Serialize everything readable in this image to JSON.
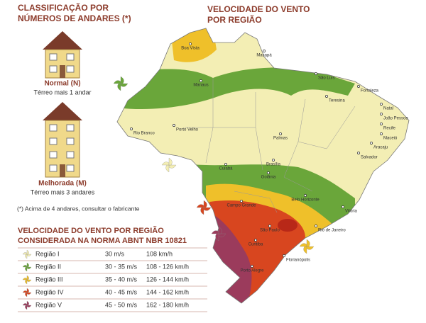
{
  "left_panel": {
    "title_lines": [
      "CLASSIFICAÇÃO POR",
      "NÚMEROS DE ANDARES (*)"
    ],
    "buildings": [
      {
        "label": "Normal (N)",
        "desc": "Térreo mais 1 andar"
      },
      {
        "label": "Melhorada (M)",
        "desc": "Térreo mais 3 andares"
      }
    ],
    "footnote": "(*) Acima de 4 andares, consultar o fabricante"
  },
  "map": {
    "title_lines": [
      "VELOCIDADE DO VENTO",
      "POR REGIÃO"
    ],
    "cities": [
      "Boa Vista",
      "Macapá",
      "Manaus",
      "São Luís",
      "Fortaleza",
      "Teresina",
      "Natal",
      "João Pessoa",
      "Recife",
      "Maceió",
      "Aracaju",
      "Salvador",
      "Palmas",
      "Rio Branco",
      "Porto Velho",
      "Cuiabá",
      "Brasília",
      "Goiânia",
      "Belo Horizonte",
      "Vitória",
      "Campo Grande",
      "São Paulo",
      "Rio de Janeiro",
      "Curitiba",
      "Florianópolis",
      "Porto Alegre"
    ]
  },
  "table": {
    "title_lines": [
      "VELOCIDADE DO VENTO POR REGIÃO",
      "CONSIDERADA NA NORMA ABNT NBR 10821"
    ],
    "rows": [
      [
        "Região I",
        "30 m/s",
        "108 km/h"
      ],
      [
        "Região II",
        "30 - 35 m/s",
        "108 - 126 km/h"
      ],
      [
        "Região III",
        "35 - 40 m/s",
        "126 - 144 km/h"
      ],
      [
        "Região IV",
        "40 - 45 m/s",
        "144 - 162 km/h"
      ],
      [
        "Região V",
        "45 - 50 m/s",
        "162 - 180 km/h"
      ]
    ],
    "colors": [
      "#f3eeb4",
      "#6aa63a",
      "#efc02a",
      "#d8461f",
      "#9b3b5c"
    ]
  }
}
